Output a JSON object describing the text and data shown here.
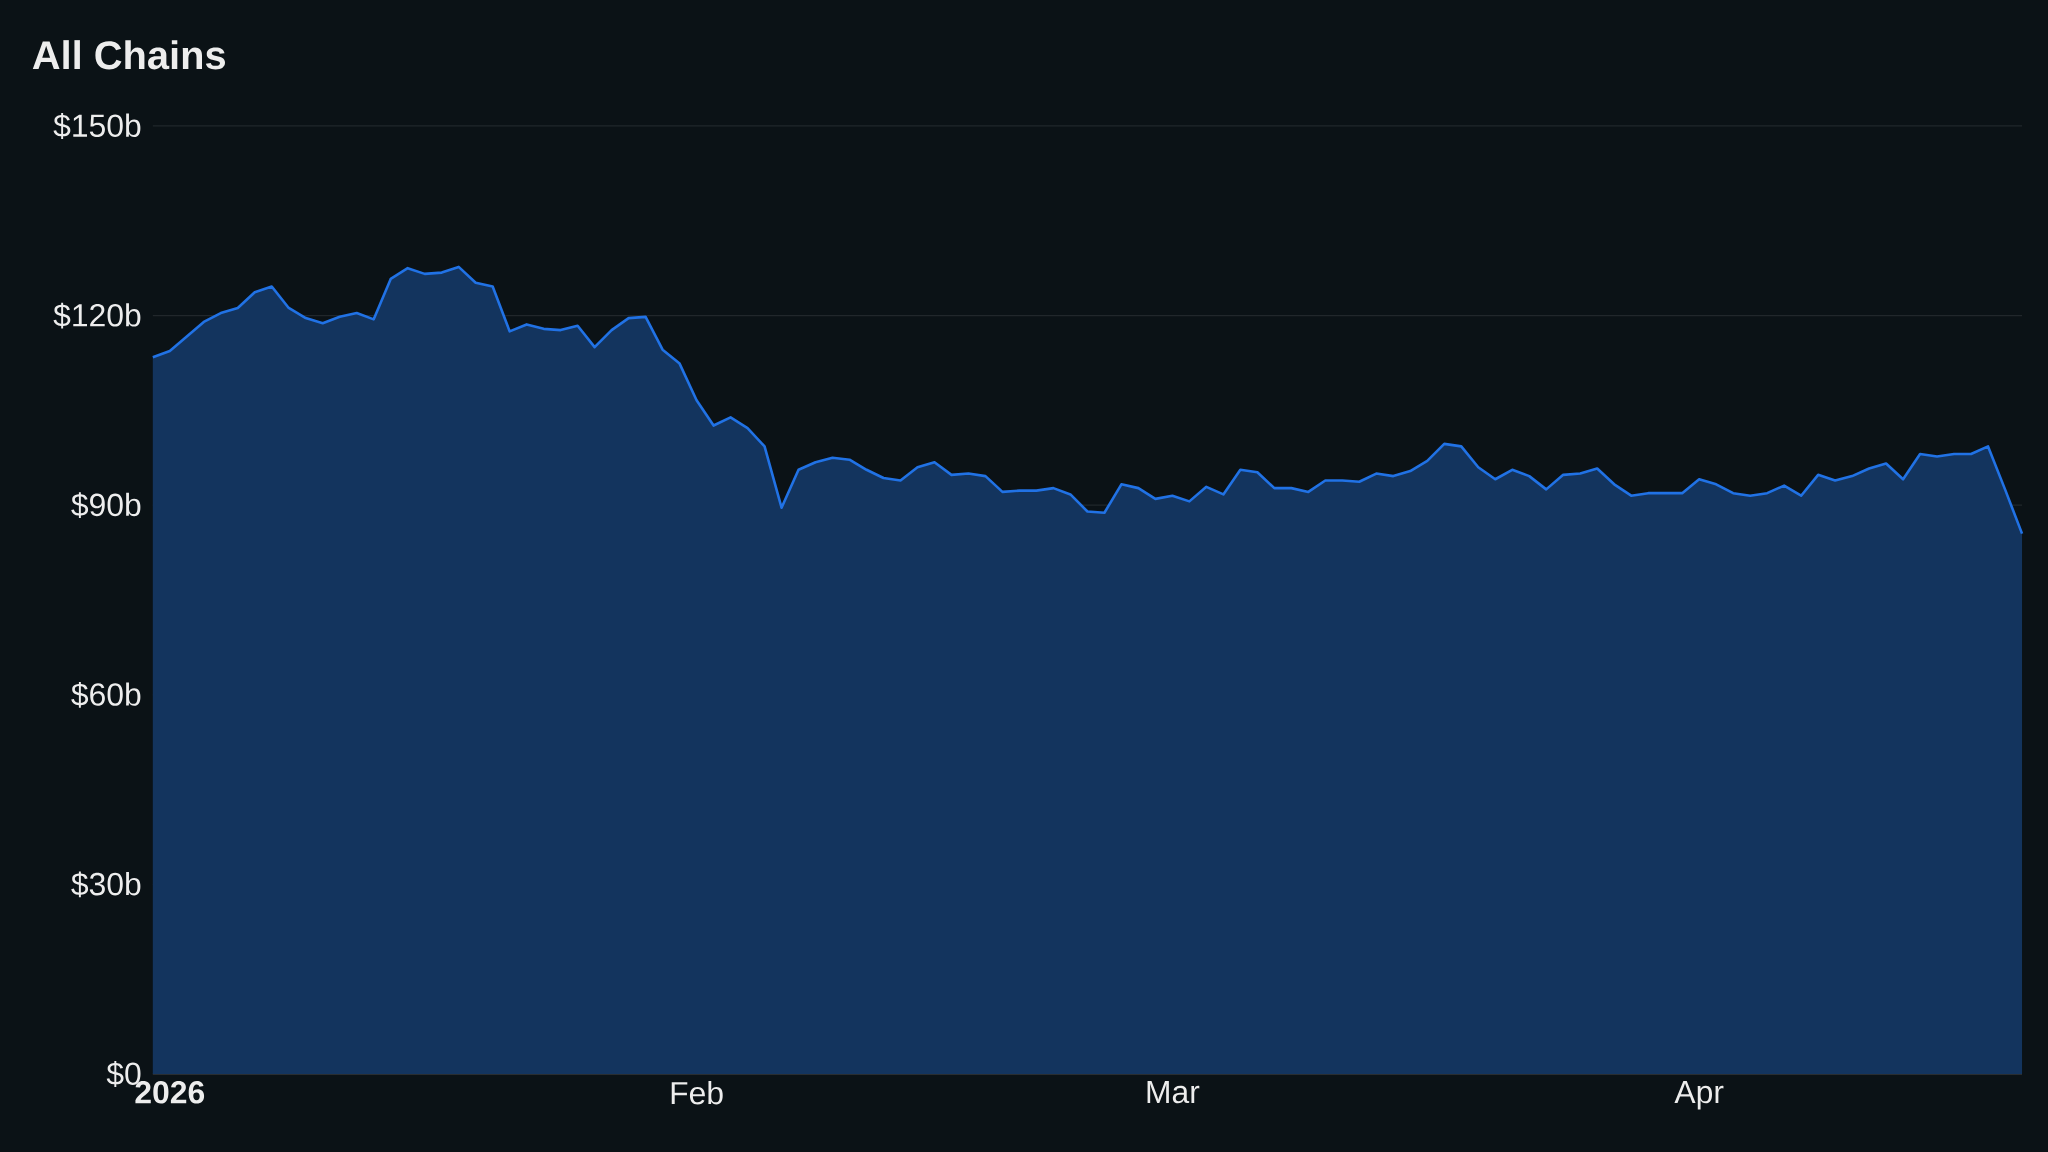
{
  "chart_data": {
    "type": "area",
    "title": "All Chains",
    "x": [
      "2025-12-31",
      "2026-01-01",
      "2026-01-02",
      "2026-01-03",
      "2026-01-04",
      "2026-01-05",
      "2026-01-06",
      "2026-01-07",
      "2026-01-08",
      "2026-01-09",
      "2026-01-10",
      "2026-01-11",
      "2026-01-12",
      "2026-01-13",
      "2026-01-14",
      "2026-01-15",
      "2026-01-16",
      "2026-01-17",
      "2026-01-18",
      "2026-01-19",
      "2026-01-20",
      "2026-01-21",
      "2026-01-22",
      "2026-01-23",
      "2026-01-24",
      "2026-01-25",
      "2026-01-26",
      "2026-01-27",
      "2026-01-28",
      "2026-01-29",
      "2026-01-30",
      "2026-01-31",
      "2026-02-01",
      "2026-02-02",
      "2026-02-03",
      "2026-02-04",
      "2026-02-05",
      "2026-02-06",
      "2026-02-07",
      "2026-02-08",
      "2026-02-09",
      "2026-02-10",
      "2026-02-11",
      "2026-02-12",
      "2026-02-13",
      "2026-02-14",
      "2026-02-15",
      "2026-02-16",
      "2026-02-17",
      "2026-02-18",
      "2026-02-19",
      "2026-02-20",
      "2026-02-21",
      "2026-02-22",
      "2026-02-23",
      "2026-02-24",
      "2026-02-25",
      "2026-02-26",
      "2026-02-27",
      "2026-02-28",
      "2026-03-01",
      "2026-03-02",
      "2026-03-03",
      "2026-03-04",
      "2026-03-05",
      "2026-03-06",
      "2026-03-07",
      "2026-03-08",
      "2026-03-09",
      "2026-03-10",
      "2026-03-11",
      "2026-03-12",
      "2026-03-13",
      "2026-03-14",
      "2026-03-15",
      "2026-03-16",
      "2026-03-17",
      "2026-03-18",
      "2026-03-19",
      "2026-03-20",
      "2026-03-21",
      "2026-03-22",
      "2026-03-23",
      "2026-03-24",
      "2026-03-25",
      "2026-03-26",
      "2026-03-27",
      "2026-03-28",
      "2026-03-29",
      "2026-03-30",
      "2026-03-31",
      "2026-04-01",
      "2026-04-02",
      "2026-04-03",
      "2026-04-04",
      "2026-04-05",
      "2026-04-06",
      "2026-04-07",
      "2026-04-08",
      "2026-04-09",
      "2026-04-10",
      "2026-04-11",
      "2026-04-12",
      "2026-04-13",
      "2026-04-14",
      "2026-04-15",
      "2026-04-16",
      "2026-04-17",
      "2026-04-18",
      "2026-04-19",
      "2026-04-20"
    ],
    "values": [
      113.4,
      114.4,
      116.7,
      119,
      120.4,
      121.2,
      123.7,
      124.6,
      121.2,
      119.6,
      118.8,
      119.8,
      120.4,
      119.4,
      125.8,
      127.5,
      126.6,
      126.8,
      127.7,
      125.2,
      124.6,
      117.5,
      118.6,
      117.9,
      117.7,
      118.4,
      115,
      117.7,
      119.6,
      119.8,
      114.6,
      112.4,
      106.6,
      102.6,
      103.9,
      102.2,
      99.3,
      89.6,
      95.6,
      96.8,
      97.5,
      97.2,
      95.6,
      94.3,
      93.9,
      96,
      96.8,
      94.8,
      95,
      94.6,
      92.1,
      92.3,
      92.3,
      92.7,
      91.7,
      89,
      88.8,
      93.3,
      92.7,
      91,
      91.5,
      90.6,
      92.9,
      91.7,
      95.6,
      95.2,
      92.7,
      92.7,
      92.1,
      93.9,
      93.9,
      93.7,
      95,
      94.6,
      95.4,
      97,
      99.7,
      99.3,
      96,
      94.1,
      95.6,
      94.6,
      92.5,
      94.8,
      95,
      95.8,
      93.3,
      91.5,
      91.9,
      91.9,
      91.9,
      94.1,
      93.3,
      91.9,
      91.5,
      91.9,
      93.1,
      91.5,
      94.8,
      93.9,
      94.6,
      95.8,
      96.6,
      94.1,
      98.1,
      97.7,
      98.1,
      98.1,
      99.3,
      92.5,
      85.5
    ],
    "color": "#2172e5",
    "xlim": [
      "2025-12-31",
      "2026-04-20"
    ],
    "xticks": [
      {
        "value": "2026-01-01",
        "label": "2026"
      },
      {
        "value": "2026-02-01",
        "label": "Feb"
      },
      {
        "value": "2026-03-01",
        "label": "Mar"
      },
      {
        "value": "2026-04-01",
        "label": "Apr"
      }
    ],
    "ylim": [
      0,
      150
    ],
    "yticks": [
      {
        "value": 0,
        "label": "$0"
      },
      {
        "value": 30,
        "label": "$30b"
      },
      {
        "value": 60,
        "label": "$60b"
      },
      {
        "value": 90,
        "label": "$90b"
      },
      {
        "value": 120,
        "label": "$120b"
      },
      {
        "value": 150,
        "label": "$150b"
      }
    ],
    "grid": "y"
  }
}
